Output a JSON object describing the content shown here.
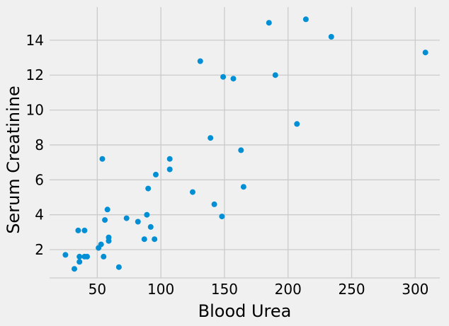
{
  "figure": {
    "background_color": "#f0f0f0",
    "grid_color": "#cbcbcb",
    "point_color": "#008fd5",
    "text_color": "#000000"
  },
  "chart_data": {
    "type": "scatter",
    "title": "",
    "xlabel": "Blood Urea",
    "ylabel": "Serum Creatinine",
    "x_ticks": [
      50,
      100,
      150,
      200,
      250,
      300
    ],
    "y_ticks": [
      2,
      4,
      6,
      8,
      10,
      12,
      14
    ],
    "xlim": [
      12.5,
      319.3
    ],
    "ylim": [
      0.38,
      15.9
    ],
    "grid": true,
    "legend": false,
    "points": [
      [
        25,
        1.7
      ],
      [
        32,
        0.9
      ],
      [
        35,
        3.1
      ],
      [
        36,
        1.6
      ],
      [
        36,
        1.3
      ],
      [
        40,
        3.1
      ],
      [
        40,
        1.6
      ],
      [
        42,
        1.6
      ],
      [
        51,
        2.1
      ],
      [
        53,
        2.3
      ],
      [
        54,
        7.2
      ],
      [
        55,
        1.6
      ],
      [
        56,
        3.7
      ],
      [
        58,
        4.3
      ],
      [
        59,
        2.7
      ],
      [
        59,
        2.5
      ],
      [
        67,
        1.0
      ],
      [
        73,
        3.8
      ],
      [
        82,
        3.6
      ],
      [
        87,
        2.6
      ],
      [
        89,
        4.0
      ],
      [
        90,
        5.5
      ],
      [
        92,
        3.3
      ],
      [
        95,
        2.6
      ],
      [
        96,
        6.3
      ],
      [
        107,
        7.2
      ],
      [
        107,
        6.6
      ],
      [
        125,
        5.3
      ],
      [
        131,
        12.8
      ],
      [
        139,
        8.4
      ],
      [
        142,
        4.6
      ],
      [
        148,
        3.9
      ],
      [
        149,
        11.9
      ],
      [
        157,
        11.8
      ],
      [
        163,
        7.7
      ],
      [
        165,
        5.6
      ],
      [
        185,
        15.0
      ],
      [
        190,
        12.0
      ],
      [
        207,
        9.2
      ],
      [
        214,
        15.2
      ],
      [
        234,
        14.2
      ],
      [
        308,
        13.3
      ]
    ]
  }
}
